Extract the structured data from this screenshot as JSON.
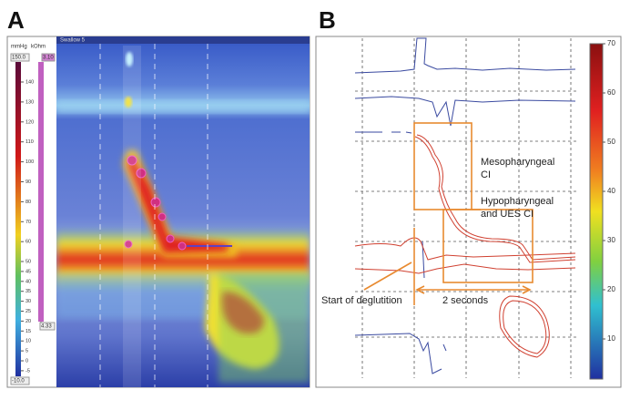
{
  "panel_a": {
    "label": "A",
    "units": [
      "mmHg",
      "kOhm"
    ],
    "scale_max": "150.0",
    "scale_min": "-10.0",
    "scale_ticks": [
      140,
      130,
      120,
      110,
      100,
      90,
      80,
      70,
      60,
      50,
      45,
      40,
      35,
      30,
      25,
      20,
      15,
      10,
      5,
      0,
      -5
    ],
    "impedance_top": "3.10",
    "impedance_bottom": "4.33",
    "swallow": "Swallow 5"
  },
  "panel_b": {
    "label": "B",
    "colorbar_ticks": [
      70,
      60,
      50,
      40,
      30,
      20,
      10
    ],
    "annotations": {
      "meso": [
        "Mesopharyngeal",
        "CI"
      ],
      "hypo": [
        "Hypopharyngeal",
        "and UES CI"
      ],
      "start": "Start of deglutition",
      "duration": "2 seconds"
    }
  }
}
